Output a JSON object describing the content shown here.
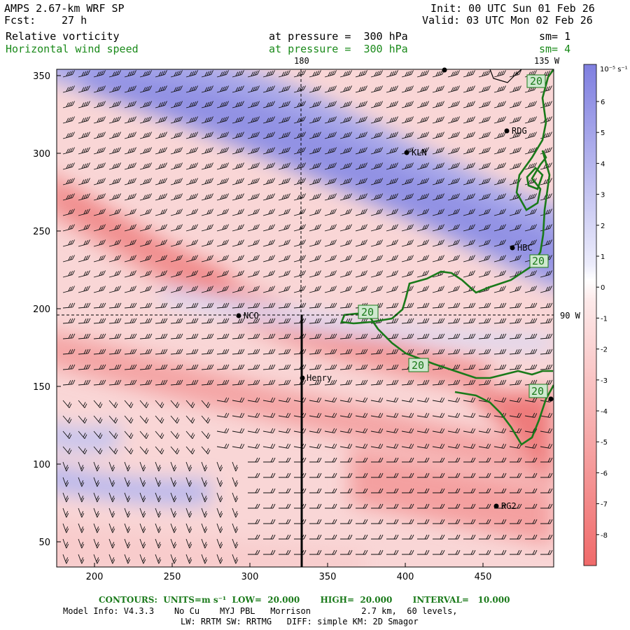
{
  "header": {
    "model": "AMPS 2.67-km WRF SP",
    "forecast_label": "Fcst:",
    "forecast_hours": "27 h",
    "init": "Init: 00 UTC Sun 01 Feb 26",
    "valid": "Valid: 03 UTC Mon 02 Feb 26",
    "field1_name": "Relative vorticity",
    "field1_level": "at pressure =  300 hPa",
    "field1_smooth": "sm= 1",
    "field2_name": "Horizontal wind speed",
    "field2_level": "at pressure =  300 hPa",
    "field2_smooth": "sm= 4"
  },
  "map": {
    "xticks": [
      "200",
      "250",
      "300",
      "350",
      "400",
      "450"
    ],
    "yticks": [
      "50",
      "100",
      "150",
      "200",
      "250",
      "300",
      "350"
    ],
    "meridian_top_label": "180",
    "corner_label": "135 W",
    "lat_label": "90 W",
    "contour_labels": [
      "20",
      "20",
      "20",
      "20",
      "20"
    ],
    "stations": [
      {
        "name": "RDG"
      },
      {
        "name": "KLN"
      },
      {
        "name": "HBC"
      },
      {
        "name": "NCO"
      },
      {
        "name": "Henry"
      },
      {
        "name": "RG2"
      }
    ],
    "colors": {
      "positive": "#8c8ce6",
      "negative": "#f07a7a",
      "contour": "#1a7a1a"
    }
  },
  "colorbar": {
    "units": "10⁻⁵ s⁻¹",
    "labels": [
      "6",
      "5",
      "4",
      "3",
      "2",
      "1",
      "0",
      "-1",
      "-2",
      "-3",
      "-4",
      "-5",
      "-6",
      "-7",
      "-8"
    ]
  },
  "footer": {
    "contours": "CONTOURS:  UNITS=m s⁻¹  LOW=  20.000       HIGH=  20.000       INTERVAL=   10.000",
    "model_info": "Model Info: V4.3.3    No Cu    MYJ PBL   Morrison          2.7 km,  60 levels,",
    "physics": "LW: RRTM SW: RRTMG   DIFF: simple KM: 2D Smagor"
  }
}
